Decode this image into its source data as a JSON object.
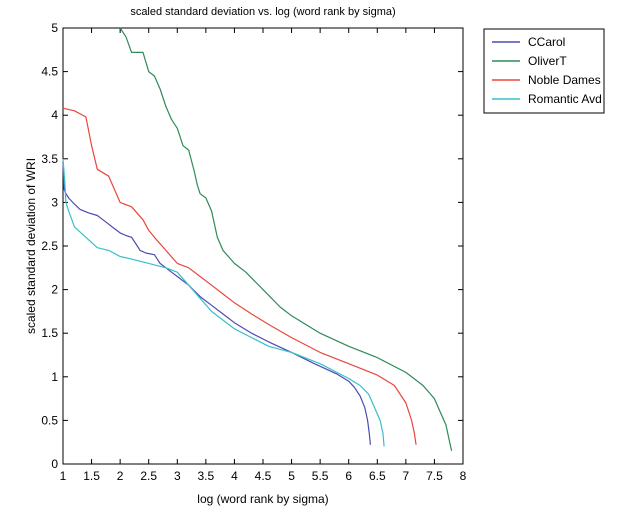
{
  "chart_data": {
    "type": "line",
    "title": "scaled standard deviation vs. log (word rank by sigma)",
    "xlabel": "log (word rank by sigma)",
    "ylabel": "scaled standard deviation of WRI",
    "xlim": [
      1,
      8
    ],
    "ylim": [
      0,
      5
    ],
    "xticks": [
      "1",
      "1.5",
      "2",
      "2.5",
      "3",
      "3.5",
      "4",
      "4.5",
      "5",
      "5.5",
      "6",
      "6.5",
      "7",
      "7.5",
      "8"
    ],
    "yticks": [
      "0",
      "0.5",
      "1",
      "1.5",
      "2",
      "2.5",
      "3",
      "3.5",
      "4",
      "4.5",
      "5"
    ],
    "grid": false,
    "legend_position": "outside-top-right",
    "series": [
      {
        "name": "CCarol",
        "color": "#4b4bb4",
        "x": [
          1.0,
          1.02,
          1.05,
          1.1,
          1.2,
          1.3,
          1.45,
          1.6,
          1.7,
          1.8,
          1.9,
          2.0,
          2.1,
          2.2,
          2.3,
          2.35,
          2.45,
          2.6,
          2.7,
          2.8,
          2.9,
          3.0,
          3.2,
          3.4,
          3.6,
          3.8,
          4.0,
          4.3,
          4.6,
          5.0,
          5.4,
          5.8,
          6.0,
          6.1,
          6.2,
          6.28,
          6.33,
          6.36,
          6.38
        ],
        "y": [
          3.45,
          3.15,
          3.1,
          3.05,
          2.98,
          2.92,
          2.88,
          2.85,
          2.8,
          2.75,
          2.7,
          2.65,
          2.62,
          2.6,
          2.5,
          2.45,
          2.42,
          2.4,
          2.3,
          2.25,
          2.2,
          2.15,
          2.05,
          1.92,
          1.82,
          1.72,
          1.62,
          1.5,
          1.4,
          1.28,
          1.15,
          1.03,
          0.95,
          0.88,
          0.78,
          0.65,
          0.5,
          0.35,
          0.22
        ]
      },
      {
        "name": "OliverT",
        "color": "#2e8b57",
        "x": [
          2.0,
          2.1,
          2.2,
          2.4,
          2.5,
          2.6,
          2.7,
          2.8,
          2.9,
          3.0,
          3.1,
          3.2,
          3.3,
          3.35,
          3.4,
          3.5,
          3.6,
          3.7,
          3.8,
          4.0,
          4.2,
          4.5,
          4.8,
          5.0,
          5.5,
          6.0,
          6.5,
          7.0,
          7.3,
          7.5,
          7.6,
          7.7,
          7.75,
          7.8
        ],
        "y": [
          5.0,
          4.9,
          4.72,
          4.72,
          4.5,
          4.45,
          4.3,
          4.1,
          3.95,
          3.85,
          3.65,
          3.6,
          3.35,
          3.2,
          3.1,
          3.05,
          2.9,
          2.6,
          2.45,
          2.3,
          2.2,
          2.0,
          1.8,
          1.7,
          1.5,
          1.35,
          1.22,
          1.05,
          0.9,
          0.75,
          0.6,
          0.45,
          0.3,
          0.15
        ]
      },
      {
        "name": "Noble Dames",
        "color": "#e8473c",
        "x": [
          1.0,
          1.2,
          1.4,
          1.5,
          1.6,
          1.8,
          2.0,
          2.2,
          2.4,
          2.5,
          2.6,
          2.8,
          3.0,
          3.2,
          3.4,
          3.6,
          3.8,
          4.0,
          4.3,
          4.6,
          5.0,
          5.5,
          6.0,
          6.5,
          6.8,
          7.0,
          7.1,
          7.15,
          7.18
        ],
        "y": [
          4.08,
          4.05,
          3.98,
          3.65,
          3.38,
          3.3,
          3.0,
          2.95,
          2.8,
          2.68,
          2.6,
          2.45,
          2.3,
          2.25,
          2.15,
          2.05,
          1.95,
          1.85,
          1.72,
          1.6,
          1.45,
          1.28,
          1.15,
          1.02,
          0.9,
          0.7,
          0.5,
          0.35,
          0.22
        ]
      },
      {
        "name": "Romantic Avd",
        "color": "#35c0c8",
        "x": [
          1.0,
          1.03,
          1.05,
          1.1,
          1.2,
          1.4,
          1.6,
          1.8,
          2.0,
          2.2,
          2.5,
          2.8,
          3.0,
          3.2,
          3.4,
          3.6,
          3.8,
          4.0,
          4.3,
          4.6,
          5.0,
          5.5,
          6.0,
          6.2,
          6.35,
          6.45,
          6.55,
          6.6,
          6.62
        ],
        "y": [
          3.5,
          3.25,
          3.0,
          2.9,
          2.72,
          2.6,
          2.48,
          2.45,
          2.38,
          2.35,
          2.3,
          2.25,
          2.2,
          2.05,
          1.9,
          1.75,
          1.65,
          1.55,
          1.45,
          1.35,
          1.28,
          1.15,
          0.98,
          0.9,
          0.8,
          0.65,
          0.5,
          0.35,
          0.2
        ]
      }
    ]
  }
}
